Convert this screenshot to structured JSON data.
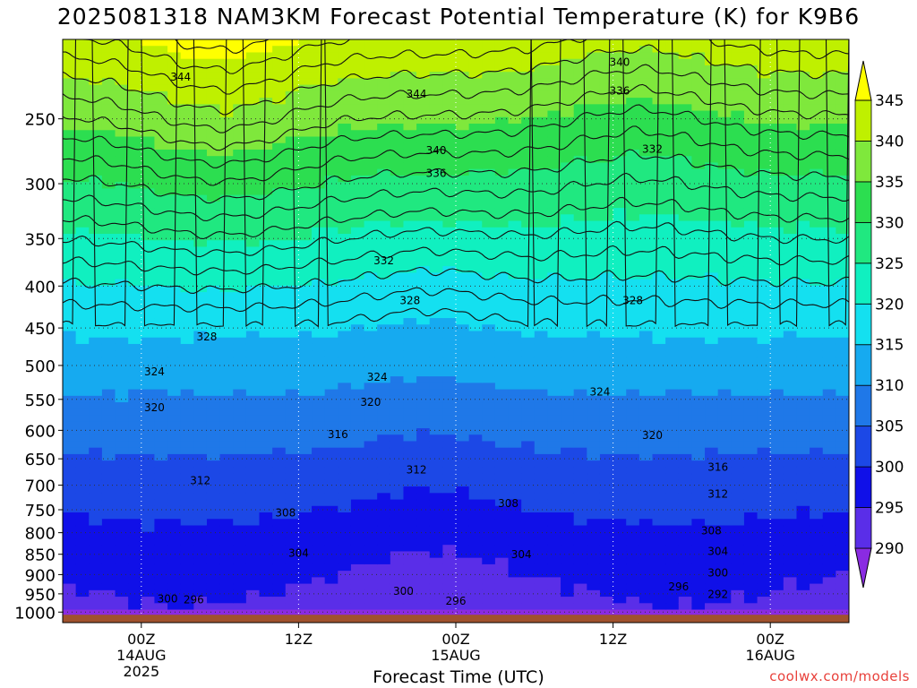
{
  "title": "2025081318 NAM3KM Forecast Potential Temperature (K) for K9B6",
  "credit": "coolwx.com/models",
  "chart_data": {
    "type": "heatmap",
    "title": "2025081318 NAM3KM Forecast Potential Temperature (K) for K9B6",
    "xlabel": "Forecast Time (UTC)",
    "ylabel": "",
    "x_ticks": [
      {
        "label": "00Z",
        "sub": [
          "14AUG",
          "2025"
        ],
        "hour": 6
      },
      {
        "label": "12Z",
        "sub": [],
        "hour": 18
      },
      {
        "label": "00Z",
        "sub": [
          "15AUG"
        ],
        "hour": 30
      },
      {
        "label": "12Z",
        "sub": [],
        "hour": 42
      },
      {
        "label": "00Z",
        "sub": [
          "16AUG"
        ],
        "hour": 54
      }
    ],
    "xlim": [
      0,
      60
    ],
    "y_scale": "log-pressure",
    "y_ticks": [
      250,
      300,
      350,
      400,
      450,
      500,
      550,
      600,
      650,
      700,
      750,
      800,
      850,
      900,
      950,
      1000
    ],
    "y_tick_labels": [
      "250",
      "300",
      "350",
      "400",
      "450",
      "500",
      "550",
      "600",
      "650",
      "700",
      "750",
      "800",
      "850",
      "900",
      "950",
      "1000"
    ],
    "ylim": [
      1030,
      200
    ],
    "colorbar": {
      "levels": [
        290,
        295,
        300,
        305,
        310,
        315,
        320,
        325,
        330,
        335,
        340,
        345
      ],
      "labels": [
        "290",
        "295",
        "300",
        "305",
        "310",
        "315",
        "320",
        "325",
        "330",
        "335",
        "340",
        "345"
      ],
      "colors": [
        "#8a2be2",
        "#5a2ee8",
        "#1010e8",
        "#1c48e6",
        "#1f78e8",
        "#16aaf0",
        "#14e0f0",
        "#10f0c0",
        "#20e880",
        "#2cde50",
        "#7fe83c",
        "#bff000",
        "#ffff00"
      ]
    },
    "ground_color": "#a0522d",
    "contour_interval": 2,
    "contour_labels": [
      {
        "value": 344,
        "hour": 9,
        "pres": 222
      },
      {
        "value": 344,
        "hour": 27,
        "pres": 233
      },
      {
        "value": 340,
        "hour": 42.5,
        "pres": 213
      },
      {
        "value": 336,
        "hour": 42.5,
        "pres": 231
      },
      {
        "value": 340,
        "hour": 28.5,
        "pres": 273
      },
      {
        "value": 336,
        "hour": 28.5,
        "pres": 291
      },
      {
        "value": 332,
        "hour": 45,
        "pres": 272
      },
      {
        "value": 332,
        "hour": 24.5,
        "pres": 372
      },
      {
        "value": 328,
        "hour": 26.5,
        "pres": 416
      },
      {
        "value": 328,
        "hour": 43.5,
        "pres": 416
      },
      {
        "value": 328,
        "hour": 11,
        "pres": 461
      },
      {
        "value": 324,
        "hour": 7,
        "pres": 508
      },
      {
        "value": 324,
        "hour": 24,
        "pres": 516
      },
      {
        "value": 324,
        "hour": 41,
        "pres": 538
      },
      {
        "value": 320,
        "hour": 7,
        "pres": 562
      },
      {
        "value": 320,
        "hour": 23.5,
        "pres": 554
      },
      {
        "value": 320,
        "hour": 45,
        "pres": 608
      },
      {
        "value": 316,
        "hour": 21,
        "pres": 606
      },
      {
        "value": 316,
        "hour": 50,
        "pres": 665
      },
      {
        "value": 312,
        "hour": 10.5,
        "pres": 690
      },
      {
        "value": 312,
        "hour": 27,
        "pres": 670
      },
      {
        "value": 312,
        "hour": 50,
        "pres": 717
      },
      {
        "value": 308,
        "hour": 17,
        "pres": 756
      },
      {
        "value": 308,
        "hour": 34,
        "pres": 736
      },
      {
        "value": 308,
        "hour": 49.5,
        "pres": 795
      },
      {
        "value": 304,
        "hour": 18,
        "pres": 846
      },
      {
        "value": 304,
        "hour": 35,
        "pres": 850
      },
      {
        "value": 304,
        "hour": 50,
        "pres": 842
      },
      {
        "value": 300,
        "hour": 50,
        "pres": 895
      },
      {
        "value": 300,
        "hour": 8,
        "pres": 962
      },
      {
        "value": 300,
        "hour": 26,
        "pres": 942
      },
      {
        "value": 296,
        "hour": 10,
        "pres": 965
      },
      {
        "value": 296,
        "hour": 30,
        "pres": 968
      },
      {
        "value": 296,
        "hour": 47,
        "pres": 930
      },
      {
        "value": 292,
        "hour": 50,
        "pres": 950
      }
    ]
  }
}
